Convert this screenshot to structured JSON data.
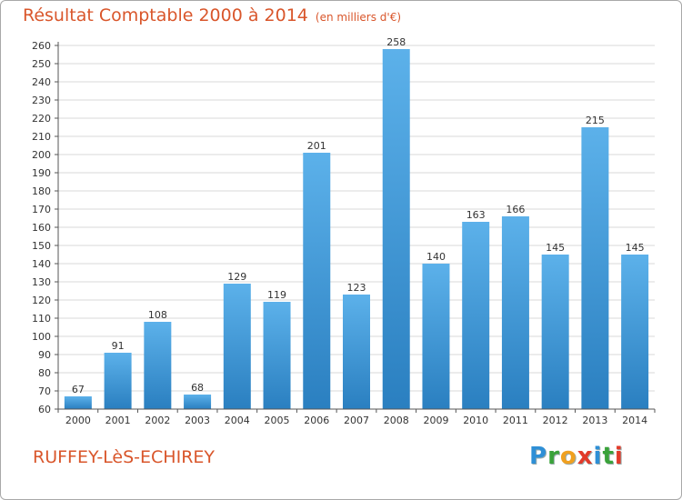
{
  "header": {
    "title": "Résultat Comptable 2000 à 2014",
    "unit": "(en milliers d'€)"
  },
  "footer": {
    "commune": "RUFFEY-LèS-ECHIREY",
    "logo": {
      "letters": [
        "P",
        "r",
        "o",
        "x",
        "i",
        "t",
        "i"
      ],
      "colors": [
        "#2e8fd6",
        "#3aa23a",
        "#f0a020",
        "#e23a2a",
        "#2e8fd6",
        "#3aa23a",
        "#e23a2a"
      ]
    }
  },
  "colors": {
    "bar_light": "#5cb1ea",
    "bar_dark": "#2a7fc0",
    "grid": "#d9d9d9",
    "axis": "#555555",
    "text": "#333333"
  },
  "chart_data": {
    "type": "bar",
    "categories": [
      "2000",
      "2001",
      "2002",
      "2003",
      "2004",
      "2005",
      "2006",
      "2007",
      "2008",
      "2009",
      "2010",
      "2011",
      "2012",
      "2013",
      "2014"
    ],
    "values": [
      67,
      91,
      108,
      68,
      129,
      119,
      201,
      123,
      258,
      140,
      163,
      166,
      145,
      215,
      145
    ],
    "ylim": [
      60,
      260
    ],
    "ytick_step": 10,
    "grid": true,
    "data_labels": true
  }
}
